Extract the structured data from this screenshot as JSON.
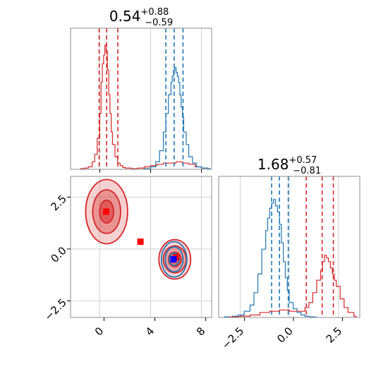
{
  "chart_data": [
    {
      "type": "histogram",
      "panel": "top-left marginal (x)",
      "title": {
        "value": "0.54",
        "upper": "+0.88",
        "lower": "−0.59"
      },
      "xlim": [
        -2.3,
        8.8
      ],
      "x_ticks": [
        0,
        4,
        8
      ],
      "series": [
        {
          "color": "#d62728",
          "bins": [
            -1.5,
            -1.2,
            -0.9,
            -0.6,
            -0.4,
            -0.2,
            0.0,
            0.1,
            0.2,
            0.3,
            0.4,
            0.5,
            0.6,
            0.7,
            0.8,
            0.9,
            1.0,
            1.2,
            1.4,
            1.6,
            1.8,
            2.0,
            2.5,
            3.0,
            3.5,
            4.0,
            4.5,
            5.0,
            5.5,
            6.0,
            6.5,
            7.0,
            7.5,
            8.0,
            8.5
          ],
          "counts": [
            0.005,
            0.01,
            0.02,
            0.06,
            0.12,
            0.25,
            0.45,
            0.7,
            0.85,
            0.92,
            1.0,
            0.95,
            0.8,
            0.6,
            0.45,
            0.3,
            0.2,
            0.1,
            0.05,
            0.03,
            0.015,
            0.01,
            0.005,
            0.01,
            0.02,
            0.03,
            0.04,
            0.05,
            0.05,
            0.06,
            0.05,
            0.04,
            0.02,
            0.01,
            0.005
          ],
          "quantile_lines": [
            -0.05,
            0.54,
            1.42
          ]
        },
        {
          "color": "#1f77b4",
          "bins": [
            3.5,
            4.0,
            4.4,
            4.7,
            5.0,
            5.2,
            5.4,
            5.6,
            5.7,
            5.8,
            5.9,
            6.0,
            6.1,
            6.2,
            6.3,
            6.4,
            6.5,
            6.6,
            6.8,
            7.0,
            7.3,
            7.6,
            8.0,
            8.5
          ],
          "counts": [
            0.005,
            0.02,
            0.06,
            0.15,
            0.3,
            0.45,
            0.6,
            0.7,
            0.75,
            0.8,
            0.82,
            0.78,
            0.75,
            0.7,
            0.6,
            0.5,
            0.42,
            0.3,
            0.2,
            0.1,
            0.05,
            0.02,
            0.01,
            0.005
          ],
          "quantile_lines": [
            5.2,
            5.85,
            6.55
          ]
        }
      ]
    },
    {
      "type": "histogram",
      "panel": "bottom-right marginal (y)",
      "title": {
        "value": "1.68",
        "upper": "+0.57",
        "lower": "−0.81"
      },
      "xlim": [
        -3.6,
        3.6
      ],
      "x_ticks": [
        -2.5,
        0.0,
        2.5
      ],
      "x_tick_labels": [
        "−2.5",
        "0.0",
        "2.5"
      ],
      "series": [
        {
          "color": "#1f77b4",
          "bins": [
            -3.3,
            -2.9,
            -2.6,
            -2.3,
            -2.0,
            -1.8,
            -1.6,
            -1.4,
            -1.2,
            -1.1,
            -1.0,
            -0.9,
            -0.8,
            -0.7,
            -0.6,
            -0.5,
            -0.4,
            -0.3,
            -0.2,
            -0.1,
            0.0,
            0.2,
            0.4,
            0.6,
            0.8,
            1.0,
            1.3
          ],
          "counts": [
            0.005,
            0.01,
            0.02,
            0.05,
            0.1,
            0.2,
            0.35,
            0.55,
            0.7,
            0.8,
            0.88,
            0.92,
            0.95,
            0.9,
            0.85,
            0.75,
            0.6,
            0.45,
            0.32,
            0.22,
            0.12,
            0.07,
            0.04,
            0.02,
            0.01,
            0.005,
            0.002
          ],
          "quantile_lines": [
            -0.9,
            -0.5,
            -0.05
          ]
        },
        {
          "color": "#d62728",
          "bins": [
            -3.0,
            -2.5,
            -2.0,
            -1.5,
            -1.0,
            -0.5,
            0.0,
            0.5,
            0.8,
            1.0,
            1.2,
            1.4,
            1.6,
            1.7,
            1.8,
            1.9,
            2.0,
            2.1,
            2.2,
            2.3,
            2.4,
            2.6,
            2.8,
            3.0,
            3.3
          ],
          "counts": [
            0.005,
            0.01,
            0.02,
            0.04,
            0.05,
            0.06,
            0.05,
            0.05,
            0.08,
            0.12,
            0.2,
            0.3,
            0.38,
            0.45,
            0.5,
            0.48,
            0.45,
            0.4,
            0.35,
            0.3,
            0.25,
            0.15,
            0.08,
            0.04,
            0.01
          ],
          "quantile_lines": [
            0.87,
            1.68,
            2.25
          ]
        }
      ]
    },
    {
      "type": "contour",
      "panel": "bottom-left 2D",
      "xlim": [
        -2.3,
        8.8
      ],
      "ylim": [
        -3.3,
        3.5
      ],
      "x_ticks": [
        0,
        4,
        8
      ],
      "y_ticks": [
        2.5,
        0.0,
        -2.5
      ],
      "y_tick_labels": [
        "2.5",
        "0.0",
        "−2.5"
      ],
      "blobs": [
        {
          "color": "#d62728",
          "cx": 0.54,
          "cy": 1.8,
          "rx": [
            1.65,
            1.1,
            0.55
          ],
          "ry": [
            1.55,
            1.05,
            0.55
          ],
          "fill_alpha": [
            0.35,
            0.6,
            0.85
          ]
        },
        {
          "color": "#d62728",
          "cx": 5.9,
          "cy": -0.5,
          "rx": [
            1.25,
            0.9,
            0.5
          ],
          "ry": [
            0.95,
            0.65,
            0.35
          ],
          "fill_alpha": [
            0.3,
            0.5,
            0.75
          ]
        },
        {
          "color": "#1f77b4",
          "cx": 5.85,
          "cy": -0.5,
          "rx": [
            1.0,
            0.7,
            0.4
          ],
          "ry": [
            0.85,
            0.6,
            0.3
          ],
          "fill_alpha": [
            0.0,
            0.0,
            0.0
          ]
        }
      ],
      "markers": [
        {
          "color": "#ff0000",
          "x": 0.5,
          "y": 1.8
        },
        {
          "color": "#ff0000",
          "x": 3.2,
          "y": 0.35
        },
        {
          "color": "#ff0000",
          "x": 6.0,
          "y": -0.4
        },
        {
          "color": "#0000ff",
          "x": 5.8,
          "y": -0.5
        }
      ]
    }
  ]
}
